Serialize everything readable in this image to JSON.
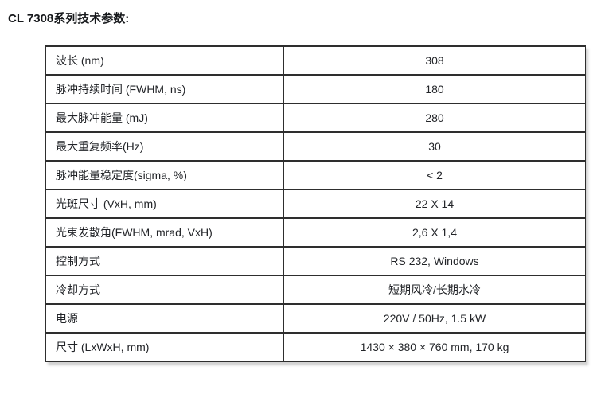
{
  "page": {
    "title": "CL 7308系列技术参数:"
  },
  "colors": {
    "background": "#ffffff",
    "border": "#2e2e2e",
    "title_text": "#16181b",
    "cell_text": "#222428"
  },
  "table": {
    "rows": [
      {
        "label": "波长 (nm)",
        "value": "308"
      },
      {
        "label": "脉冲持续时间 (FWHM, ns)",
        "value": "180"
      },
      {
        "label": "最大脉冲能量 (mJ)",
        "value": "280"
      },
      {
        "label": "最大重复频率(Hz)",
        "value": "30"
      },
      {
        "label": "脉冲能量稳定度(sigma, %)",
        "value": "< 2"
      },
      {
        "label": "光斑尺寸 (VxH, mm)",
        "value": "22 X 14"
      },
      {
        "label": "光束发散角(FWHM, mrad, VxH)",
        "value": "2,6 X 1,4"
      },
      {
        "label": "控制方式",
        "value": "RS 232, Windows"
      },
      {
        "label": "冷却方式",
        "value": "短期风冷/长期水冷"
      },
      {
        "label": "电源",
        "value": "220V / 50Hz, 1.5 kW"
      },
      {
        "label": "尺寸 (LxWxH, mm)",
        "value": "1430 × 380 × 760 mm, 170 kg"
      }
    ]
  }
}
